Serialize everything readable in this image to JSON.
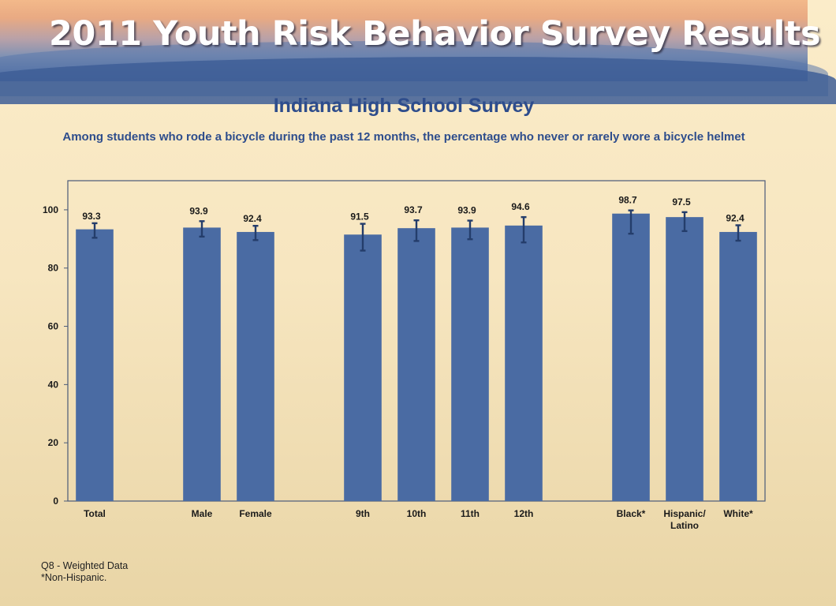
{
  "header": {
    "banner_title": "2011 Youth Risk Behavior Survey Results"
  },
  "chart_data": {
    "type": "bar",
    "title": "Indiana High School Survey",
    "subtitle": "Among students who rode a bicycle during the past 12 months, the percentage who never or rarely wore a bicycle helmet",
    "categories": [
      "Total",
      "Male",
      "Female",
      "9th",
      "10th",
      "11th",
      "12th",
      "Black*",
      "Hispanic/\nLatino",
      "White*"
    ],
    "values": [
      93.3,
      93.9,
      92.4,
      91.5,
      93.7,
      93.9,
      94.6,
      98.7,
      97.5,
      92.4
    ],
    "ci_low": [
      90.4,
      90.8,
      89.6,
      86.0,
      89.3,
      89.9,
      88.8,
      91.8,
      92.7,
      89.4
    ],
    "ci_high": [
      95.4,
      96.1,
      94.5,
      95.2,
      96.4,
      96.3,
      97.5,
      99.8,
      99.2,
      94.7
    ],
    "value_labels": [
      "93.3",
      "93.9",
      "92.4",
      "91.5",
      "93.7",
      "93.9",
      "94.6",
      "98.7",
      "97.5",
      "92.4"
    ],
    "groups": [
      [
        0
      ],
      [
        1,
        2
      ],
      [
        3,
        4,
        5,
        6
      ],
      [
        7,
        8,
        9
      ]
    ],
    "ylim": [
      0,
      110
    ],
    "yticks": [
      0,
      20,
      40,
      60,
      80,
      100
    ],
    "xlabel": "",
    "ylabel": "",
    "error_bars": true,
    "grid": false,
    "legend": "none",
    "colors": {
      "bar": "#4a6ba3",
      "error": "#243d6b",
      "axis": "#4a5a78",
      "title": "#2e4d8c"
    }
  },
  "footnotes": {
    "source": "Q8 - Weighted Data",
    "note": "*Non-Hispanic."
  }
}
